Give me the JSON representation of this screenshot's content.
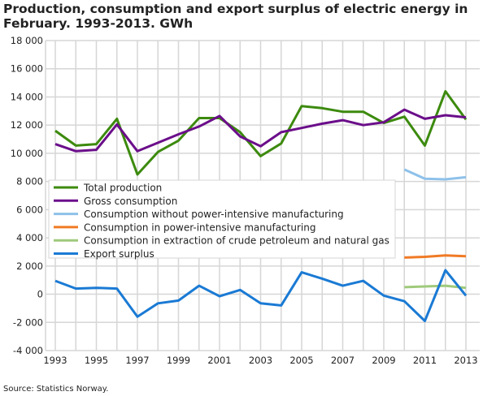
{
  "chart_data": {
    "type": "line",
    "title": "Production, consumption and export surplus of electric energy in February. 1993-2013. GWh",
    "source": "Source: Statistics Norway.",
    "xlabel": "",
    "ylabel": "",
    "xlim": [
      1993,
      2013
    ],
    "ylim": [
      -4000,
      18000
    ],
    "yticks": [
      -4000,
      -2000,
      0,
      2000,
      4000,
      6000,
      8000,
      10000,
      12000,
      14000,
      16000,
      18000
    ],
    "ytick_labels": [
      "-4 000",
      "-2 000",
      "0",
      "2 000",
      "4 000",
      "6 000",
      "8 000",
      "10 000",
      "12 000",
      "14 000",
      "16 000",
      "18 000"
    ],
    "xtick_labels": [
      "1993",
      "1995",
      "1997",
      "1999",
      "2001",
      "2003",
      "2005",
      "2007",
      "2009",
      "2011",
      "2013"
    ],
    "grid": true,
    "legend_placement": "center-left",
    "x": [
      1993,
      1994,
      1995,
      1996,
      1997,
      1998,
      1999,
      2000,
      2001,
      2002,
      2003,
      2004,
      2005,
      2006,
      2007,
      2008,
      2009,
      2010,
      2011,
      2012,
      2013
    ],
    "series": [
      {
        "name": "Total production",
        "color": "#3c8a0e",
        "values": [
          11600,
          10550,
          10650,
          12450,
          8500,
          10100,
          10900,
          12500,
          12500,
          11500,
          9800,
          10700,
          13350,
          13200,
          12950,
          12950,
          12150,
          12600,
          10550,
          14400,
          12400
        ]
      },
      {
        "name": "Gross consumption",
        "color": "#6b0e8a",
        "values": [
          10650,
          10150,
          10250,
          12050,
          10150,
          10750,
          11350,
          11900,
          12650,
          11200,
          10500,
          11500,
          11800,
          12100,
          12350,
          12000,
          12200,
          13100,
          12450,
          12700,
          12550
        ]
      },
      {
        "name": "Consumption without power-intensive manufacturing",
        "color": "#8ec1ea",
        "values": [
          null,
          null,
          null,
          null,
          null,
          null,
          null,
          null,
          null,
          null,
          null,
          null,
          null,
          null,
          null,
          null,
          null,
          8850,
          8200,
          8150,
          8300
        ]
      },
      {
        "name": "Consumption in power-intensive manufacturing",
        "color": "#f07a25",
        "values": [
          null,
          null,
          null,
          null,
          null,
          null,
          null,
          null,
          null,
          null,
          null,
          null,
          null,
          null,
          null,
          null,
          null,
          2600,
          2650,
          2750,
          2700
        ]
      },
      {
        "name": "Consumption in extraction of crude petroleum and natural gas",
        "color": "#9fca7b",
        "values": [
          null,
          null,
          null,
          null,
          null,
          null,
          null,
          null,
          null,
          null,
          null,
          null,
          null,
          null,
          null,
          null,
          null,
          500,
          550,
          600,
          450
        ]
      },
      {
        "name": "Export surplus",
        "color": "#1a7ad4",
        "values": [
          950,
          400,
          450,
          400,
          -1600,
          -650,
          -450,
          600,
          -150,
          300,
          -650,
          -800,
          1550,
          1100,
          600,
          950,
          -100,
          -500,
          -1900,
          1700,
          -100
        ]
      }
    ]
  }
}
